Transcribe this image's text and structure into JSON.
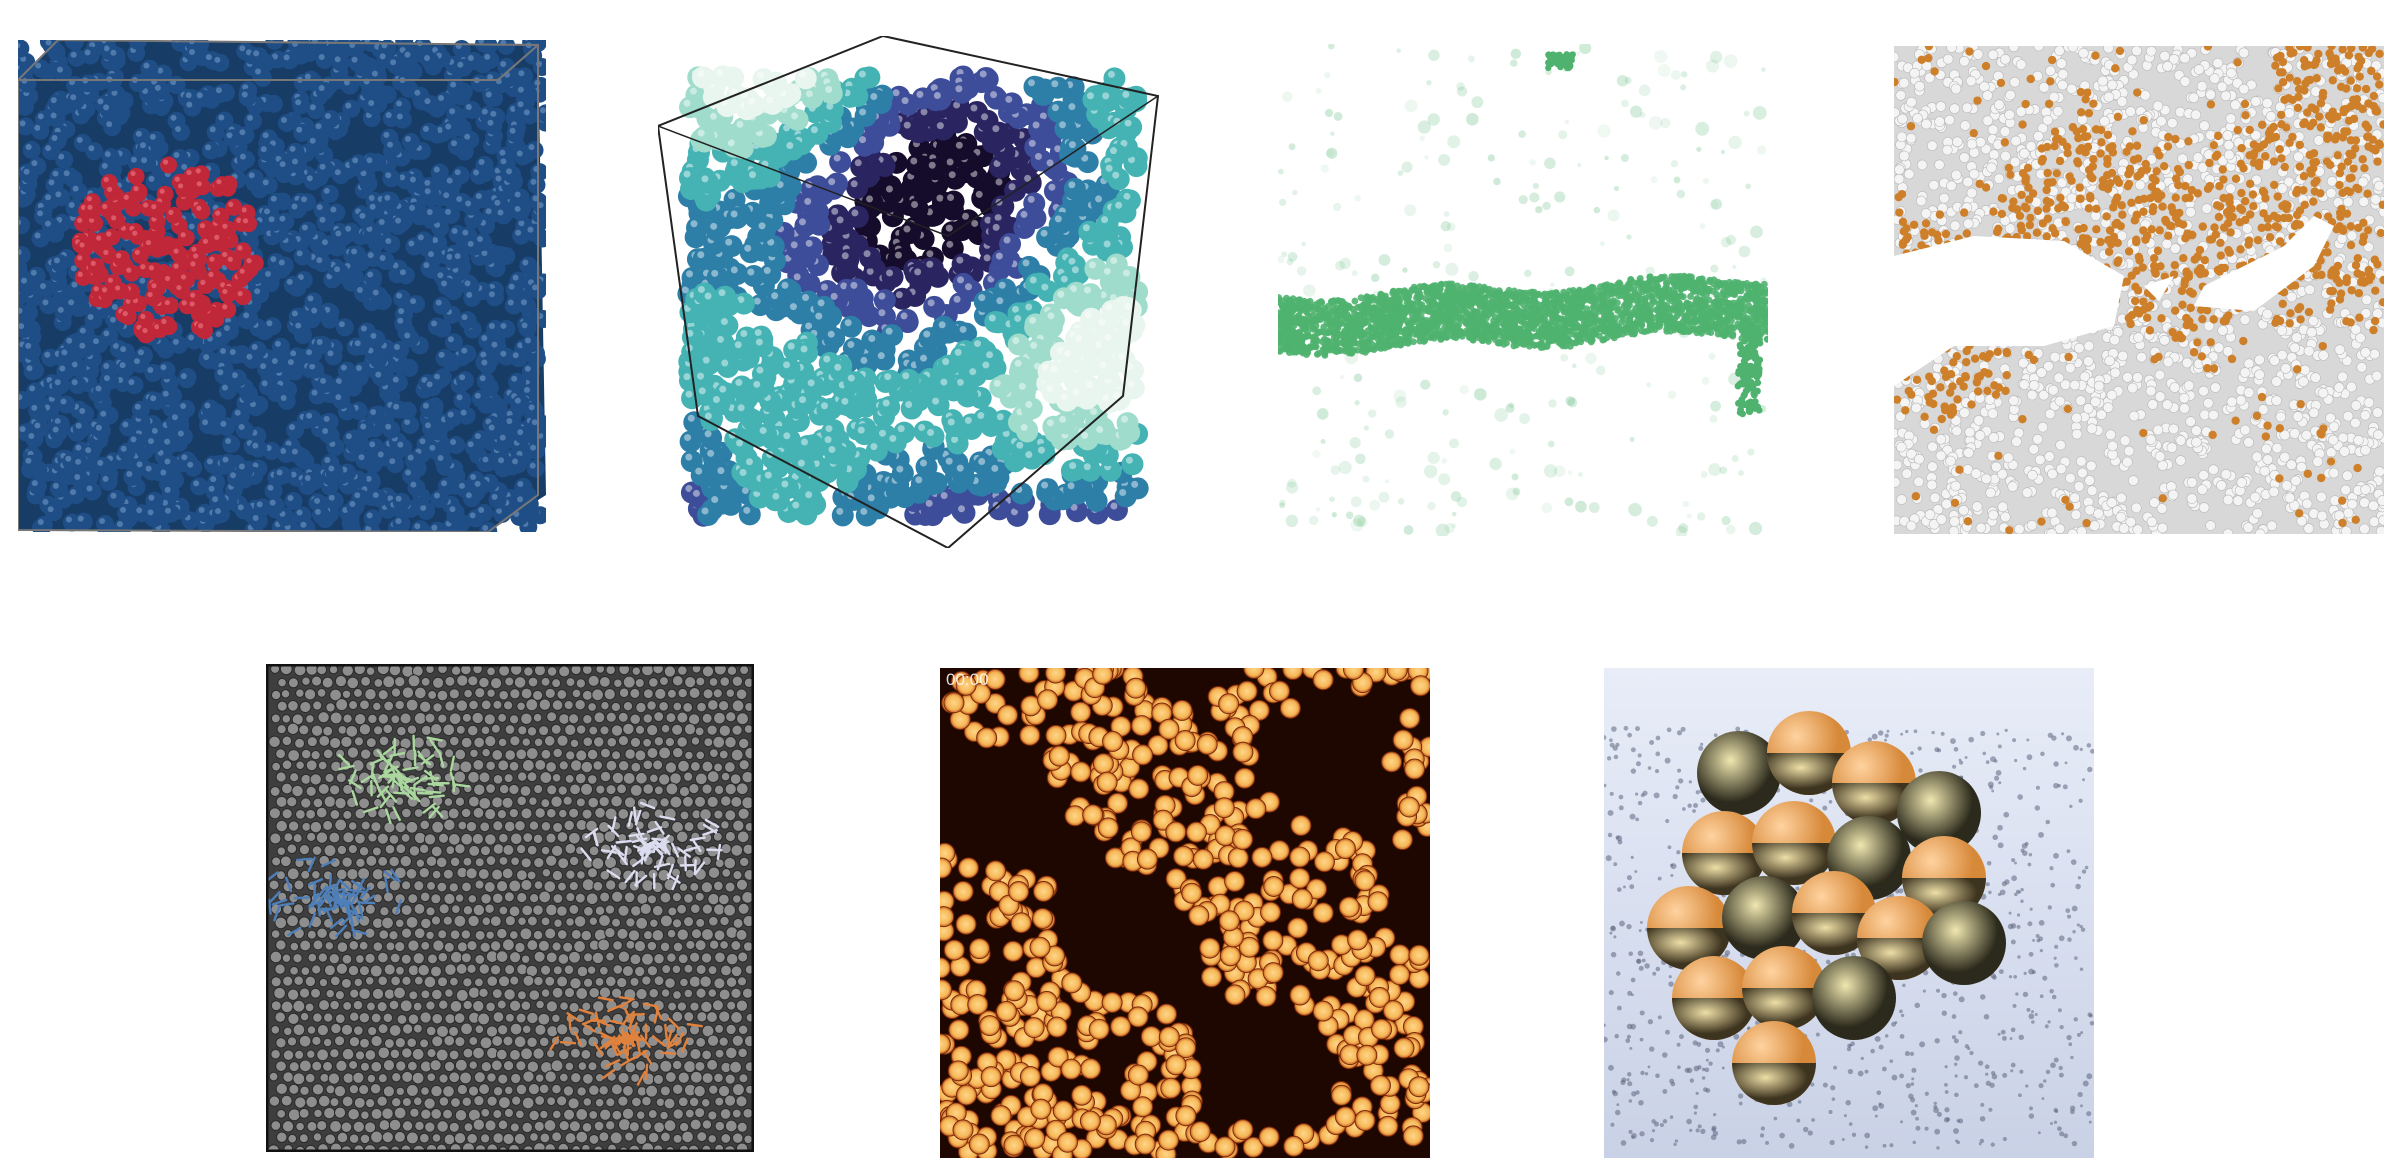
{
  "panels": [
    {
      "name": "crystal-nucleus-cube",
      "colors": {
        "bulk": "#1f4e86",
        "nucleus": "#c0283a",
        "edge": "#777777"
      }
    },
    {
      "name": "colored-cluster-cube",
      "colors": {
        "palette": [
          "#e9f6ef",
          "#9fdccc",
          "#45b3b4",
          "#2d7fa8",
          "#3e4d9a",
          "#2a2461",
          "#150b2a"
        ],
        "edge": "#222222"
      }
    },
    {
      "name": "green-band-slab",
      "colors": {
        "band": "#4fb26f",
        "background": "#ffffff"
      }
    },
    {
      "name": "orange-fracture-slab",
      "colors": {
        "grain": "#cd7f2a",
        "background": "#d8d8d8",
        "gap": "#ffffff"
      }
    },
    {
      "name": "gray-disk-packing-with-vector-fields",
      "colors": {
        "background": "#3e3e3e",
        "disk": "#8e8e8e",
        "fields": [
          "#a9d79e",
          "#4f7fb8",
          "#dcdcf0",
          "#e0823d"
        ]
      }
    },
    {
      "name": "fluorescent-colloid-micrograph",
      "timestamp": "00:00",
      "colors": {
        "particle": "#f5b756",
        "background": "#1e0700"
      }
    },
    {
      "name": "rendered-janus-spheres",
      "colors": {
        "shell": "#d7893a",
        "metal": "#8a7a3a",
        "floor": "#c9d1e6"
      }
    }
  ]
}
